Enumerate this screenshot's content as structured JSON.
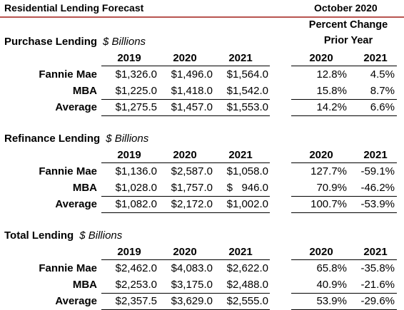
{
  "header": {
    "title": "Residential Lending Forecast",
    "date": "October 2020"
  },
  "percent_change": {
    "line1": "Percent Change",
    "line2": "Prior Year"
  },
  "sections": [
    {
      "name": "Purchase Lending",
      "unit": "$ Billions",
      "years": [
        "2019",
        "2020",
        "2021"
      ],
      "pct_years": [
        "2020",
        "2021"
      ],
      "rows": [
        {
          "label": "Fannie Mae",
          "values": [
            "$1,326.0",
            "$1,496.0",
            "$1,564.0"
          ],
          "pct": [
            "12.8%",
            "4.5%"
          ]
        },
        {
          "label": "MBA",
          "values": [
            "$1,225.0",
            "$1,418.0",
            "$1,542.0"
          ],
          "pct": [
            "15.8%",
            "8.7%"
          ]
        },
        {
          "label": "Average",
          "values": [
            "$1,275.5",
            "$1,457.0",
            "$1,553.0"
          ],
          "pct": [
            "14.2%",
            "6.6%"
          ]
        }
      ]
    },
    {
      "name": "Refinance Lending",
      "unit": "$ Billions",
      "years": [
        "2019",
        "2020",
        "2021"
      ],
      "pct_years": [
        "2020",
        "2021"
      ],
      "rows": [
        {
          "label": "Fannie Mae",
          "values": [
            "$1,136.0",
            "$2,587.0",
            "$1,058.0"
          ],
          "pct": [
            "127.7%",
            "-59.1%"
          ]
        },
        {
          "label": "MBA",
          "values": [
            "$1,028.0",
            "$1,757.0",
            "$   946.0"
          ],
          "pct": [
            "70.9%",
            "-46.2%"
          ]
        },
        {
          "label": "Average",
          "values": [
            "$1,082.0",
            "$2,172.0",
            "$1,002.0"
          ],
          "pct": [
            "100.7%",
            "-53.9%"
          ]
        }
      ]
    },
    {
      "name": "Total Lending",
      "unit": "$ Billions",
      "years": [
        "2019",
        "2020",
        "2021"
      ],
      "pct_years": [
        "2020",
        "2021"
      ],
      "rows": [
        {
          "label": "Fannie Mae",
          "values": [
            "$2,462.0",
            "$4,083.0",
            "$2,622.0"
          ],
          "pct": [
            "65.8%",
            "-35.8%"
          ]
        },
        {
          "label": "MBA",
          "values": [
            "$2,253.0",
            "$3,175.0",
            "$2,488.0"
          ],
          "pct": [
            "40.9%",
            "-21.6%"
          ]
        },
        {
          "label": "Average",
          "values": [
            "$2,357.5",
            "$3,629.0",
            "$2,555.0"
          ],
          "pct": [
            "53.9%",
            "-29.6%"
          ]
        }
      ]
    }
  ]
}
